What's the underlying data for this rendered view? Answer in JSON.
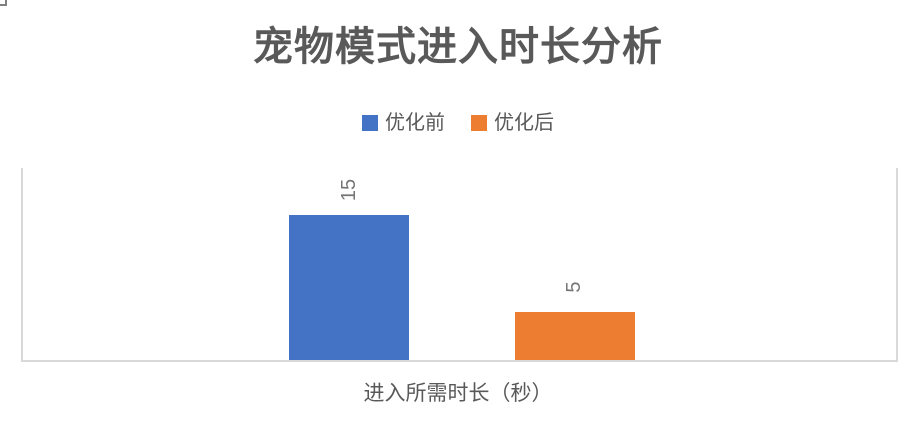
{
  "chart_data": {
    "type": "bar",
    "title": "宠物模式进入时长分析",
    "categories": [
      "进入所需时长（秒）"
    ],
    "series": [
      {
        "name": "优化前",
        "values": [
          15
        ],
        "color": "#4472C4"
      },
      {
        "name": "优化后",
        "values": [
          5
        ],
        "color": "#ED7D31"
      }
    ],
    "ylim": [
      0,
      20
    ],
    "xlabel": "",
    "ylabel": "",
    "grid": false,
    "legend_position": "top",
    "data_label_rotation": -90
  },
  "style": {
    "title_color": "#595959",
    "legend_text_color": "#595959",
    "axis_text_color": "#595959",
    "data_label_color": "#757575",
    "plot_border_color": "#D9D9D9",
    "background": "#FFFFFF"
  }
}
